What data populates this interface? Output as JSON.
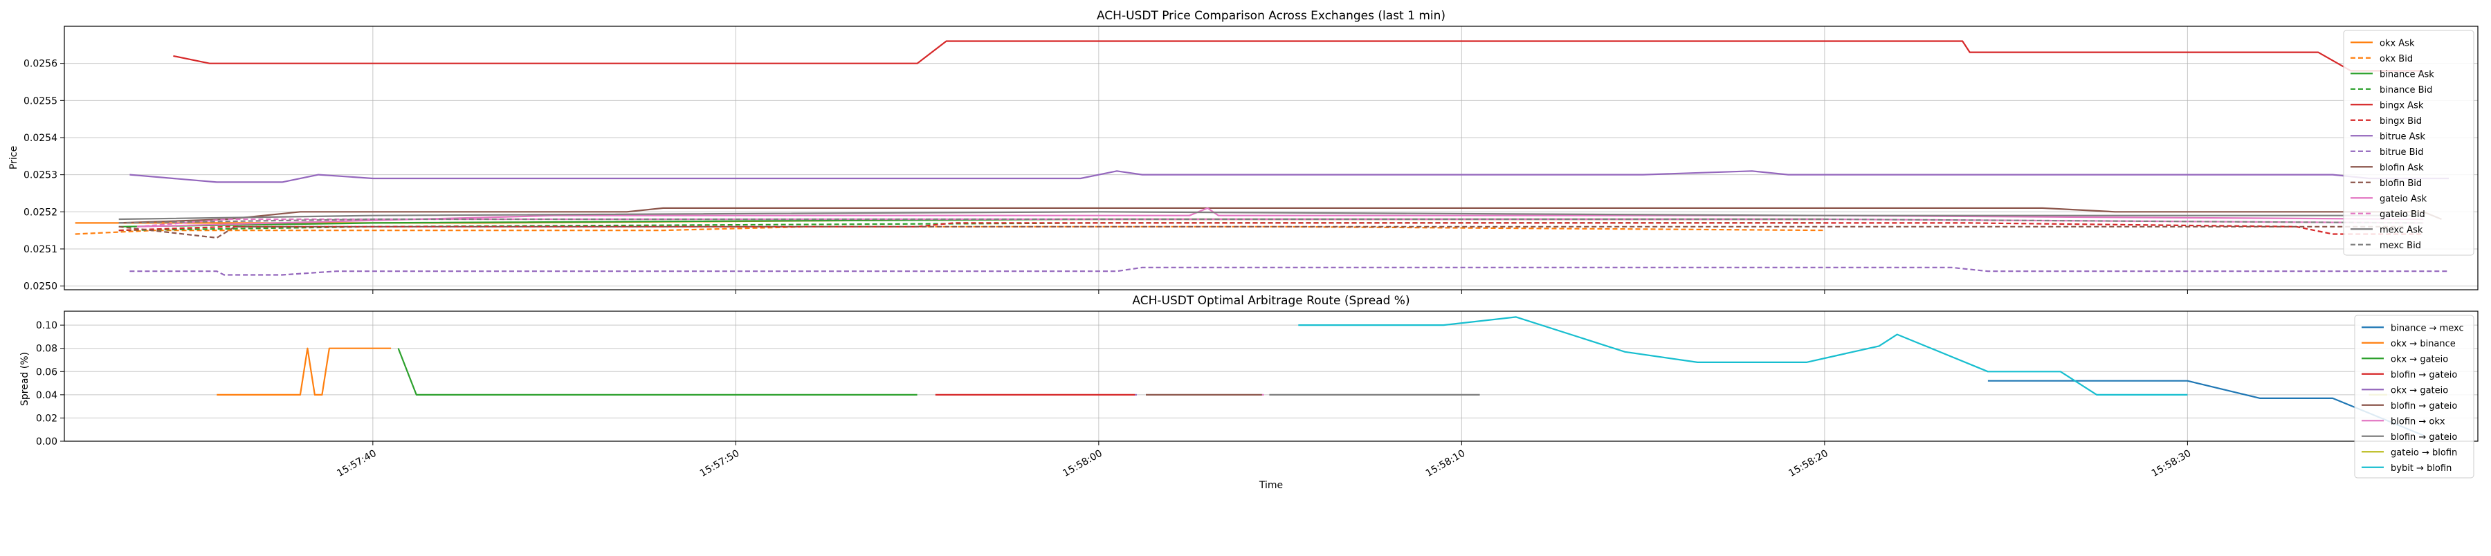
{
  "chart_data": [
    {
      "type": "line",
      "title": "ACH-USDT Price Comparison Across Exchanges (last 1 min)",
      "xlabel": "",
      "ylabel": "Price",
      "ylim": [
        0.02499,
        0.0257
      ],
      "yticks": [
        "0.0250",
        "0.0251",
        "0.0252",
        "0.0253",
        "0.0254",
        "0.0255",
        "0.0256"
      ],
      "ytick_values": [
        0.025,
        0.0251,
        0.0252,
        0.0253,
        0.0254,
        0.0255,
        0.0256
      ],
      "grid": true,
      "legend_position": "top-right",
      "series": [
        {
          "name": "okx Ask",
          "color": "#ff7f0e",
          "dash": false,
          "points": [
            [
              31.8,
              0.02517
            ],
            [
              38.0,
              0.02517
            ],
            [
              43.0,
              0.02517
            ],
            [
              59.0,
              0.02518
            ],
            [
              80.0,
              0.02518
            ]
          ]
        },
        {
          "name": "okx Bid",
          "color": "#ff7f0e",
          "dash": true,
          "points": [
            [
              31.8,
              0.02514
            ],
            [
              34.0,
              0.02515
            ],
            [
              48.0,
              0.02515
            ],
            [
              52.0,
              0.02516
            ],
            [
              65.0,
              0.02516
            ],
            [
              80.0,
              0.02515
            ]
          ]
        },
        {
          "name": "binance Ask",
          "color": "#2ca02c",
          "dash": false,
          "points": [
            [
              33.0,
              0.02516
            ],
            [
              40.0,
              0.02517
            ],
            [
              60.0,
              0.02518
            ],
            [
              78.0,
              0.02518
            ],
            [
              80.0,
              0.02518
            ]
          ]
        },
        {
          "name": "binance Bid",
          "color": "#2ca02c",
          "dash": true,
          "points": [
            [
              33.0,
              0.02515
            ],
            [
              40.0,
              0.02516
            ],
            [
              60.0,
              0.02517
            ],
            [
              80.0,
              0.02517
            ]
          ]
        },
        {
          "name": "bingx Ask",
          "color": "#d62728",
          "dash": false,
          "points": [
            [
              34.5,
              0.02562
            ],
            [
              35.5,
              0.0256
            ],
            [
              36.0,
              0.0256
            ],
            [
              55.0,
              0.0256
            ],
            [
              55.8,
              0.02566
            ],
            [
              83.8,
              0.02566
            ],
            [
              84.0,
              0.02563
            ],
            [
              93.6,
              0.02563
            ],
            [
              94.5,
              0.02558
            ],
            [
              96.5,
              0.02558
            ]
          ]
        },
        {
          "name": "bingx Bid",
          "color": "#d62728",
          "dash": true,
          "points": [
            [
              33.0,
              0.02515
            ],
            [
              36.0,
              0.02516
            ],
            [
              55.0,
              0.02516
            ],
            [
              56.0,
              0.02517
            ],
            [
              84.0,
              0.02517
            ],
            [
              93.0,
              0.02516
            ],
            [
              94.0,
              0.02514
            ],
            [
              96.5,
              0.02514
            ]
          ]
        },
        {
          "name": "bitrue Ask",
          "color": "#9467bd",
          "dash": false,
          "points": [
            [
              33.3,
              0.0253
            ],
            [
              34.5,
              0.02529
            ],
            [
              35.7,
              0.02528
            ],
            [
              37.5,
              0.02528
            ],
            [
              38.5,
              0.0253
            ],
            [
              40.0,
              0.02529
            ],
            [
              59.5,
              0.02529
            ],
            [
              60.5,
              0.02531
            ],
            [
              61.2,
              0.0253
            ],
            [
              75.0,
              0.0253
            ],
            [
              78.0,
              0.02531
            ],
            [
              79.0,
              0.0253
            ],
            [
              94.0,
              0.0253
            ],
            [
              95.0,
              0.02529
            ],
            [
              97.2,
              0.02529
            ]
          ]
        },
        {
          "name": "bitrue Bid",
          "color": "#9467bd",
          "dash": true,
          "points": [
            [
              33.3,
              0.02504
            ],
            [
              35.7,
              0.02504
            ],
            [
              35.9,
              0.02503
            ],
            [
              37.5,
              0.02503
            ],
            [
              39.0,
              0.02504
            ],
            [
              60.5,
              0.02504
            ],
            [
              61.2,
              0.02505
            ],
            [
              83.5,
              0.02505
            ],
            [
              84.5,
              0.02504
            ],
            [
              97.2,
              0.02504
            ]
          ]
        },
        {
          "name": "blofin Ask",
          "color": "#8c564b",
          "dash": false,
          "points": [
            [
              33.0,
              0.02517
            ],
            [
              36.0,
              0.02518
            ],
            [
              38.0,
              0.0252
            ],
            [
              47.0,
              0.0252
            ],
            [
              48.0,
              0.02521
            ],
            [
              86.0,
              0.02521
            ],
            [
              88.0,
              0.0252
            ],
            [
              96.5,
              0.0252
            ],
            [
              97.0,
              0.02518
            ]
          ]
        },
        {
          "name": "blofin Bid",
          "color": "#8c564b",
          "dash": true,
          "points": [
            [
              33.0,
              0.02516
            ],
            [
              35.7,
              0.02513
            ],
            [
              36.2,
              0.02516
            ],
            [
              62.0,
              0.02516
            ],
            [
              80.0,
              0.02516
            ],
            [
              96.0,
              0.02516
            ]
          ]
        },
        {
          "name": "gateio Ask",
          "color": "#e377c2",
          "dash": false,
          "points": [
            [
              33.5,
              0.02516
            ],
            [
              45.0,
              0.02519
            ],
            [
              60.0,
              0.02519
            ],
            [
              62.5,
              0.02519
            ],
            [
              63.0,
              0.02521
            ],
            [
              63.3,
              0.02519
            ],
            [
              80.0,
              0.02519
            ],
            [
              96.5,
              0.02518
            ]
          ]
        },
        {
          "name": "gateio Bid",
          "color": "#e377c2",
          "dash": true,
          "points": [
            [
              33.5,
              0.02516
            ],
            [
              36.0,
              0.02518
            ],
            [
              38.0,
              0.02518
            ],
            [
              60.0,
              0.02518
            ],
            [
              80.0,
              0.02518
            ],
            [
              96.5,
              0.02517
            ]
          ]
        },
        {
          "name": "mexc Ask",
          "color": "#7f7f7f",
          "dash": false,
          "points": [
            [
              33.0,
              0.02518
            ],
            [
              40.0,
              0.02519
            ],
            [
              60.0,
              0.0252
            ],
            [
              80.0,
              0.02519
            ],
            [
              96.5,
              0.02519
            ]
          ]
        },
        {
          "name": "mexc Bid",
          "color": "#7f7f7f",
          "dash": true,
          "points": [
            [
              33.0,
              0.02517
            ],
            [
              40.0,
              0.02518
            ],
            [
              60.0,
              0.02518
            ],
            [
              80.0,
              0.02518
            ],
            [
              96.5,
              0.02517
            ]
          ]
        }
      ]
    },
    {
      "type": "line",
      "title": "ACH-USDT Optimal Arbitrage Route (Spread %)",
      "xlabel": "Time",
      "ylabel": "Spread (%)",
      "ylim": [
        0.0,
        0.112
      ],
      "yticks": [
        "0.00",
        "0.02",
        "0.04",
        "0.06",
        "0.08",
        "0.10"
      ],
      "ytick_values": [
        0.0,
        0.02,
        0.04,
        0.06,
        0.08,
        0.1
      ],
      "grid": true,
      "legend_position": "top-right",
      "series": [
        {
          "name": "binance → mexc",
          "color": "#1f77b4",
          "points": [
            [
              84.5,
              0.052
            ],
            [
              90.0,
              0.052
            ],
            [
              92.0,
              0.037
            ],
            [
              94.0,
              0.037
            ],
            [
              96.5,
              0.005
            ]
          ]
        },
        {
          "name": "okx → binance",
          "color": "#ff7f0e",
          "points": [
            [
              35.7,
              0.04
            ],
            [
              38.0,
              0.04
            ],
            [
              38.2,
              0.08
            ],
            [
              38.4,
              0.04
            ],
            [
              38.6,
              0.04
            ],
            [
              38.8,
              0.08
            ],
            [
              40.5,
              0.08
            ]
          ]
        },
        {
          "name": "okx → gateio",
          "color": "#2ca02c",
          "points": [
            [
              40.7,
              0.08
            ],
            [
              41.2,
              0.04
            ],
            [
              55.0,
              0.04
            ]
          ]
        },
        {
          "name": "blofin → gateio",
          "color": "#d62728",
          "points": [
            [
              55.5,
              0.04
            ],
            [
              61.0,
              0.04
            ]
          ]
        },
        {
          "name": "okx → gateio",
          "color": "#9467bd",
          "points": [
            [
              61.0,
              0.04
            ],
            [
              61.05,
              0.04
            ]
          ]
        },
        {
          "name": "blofin → gateio",
          "color": "#8c564b",
          "points": [
            [
              61.3,
              0.04
            ],
            [
              64.5,
              0.04
            ]
          ]
        },
        {
          "name": "blofin → okx",
          "color": "#e377c2",
          "points": [
            [
              64.5,
              0.04
            ],
            [
              64.55,
              0.04
            ]
          ]
        },
        {
          "name": "blofin → gateio",
          "color": "#7f7f7f",
          "points": [
            [
              64.7,
              0.04
            ],
            [
              70.5,
              0.04
            ]
          ]
        },
        {
          "name": "gateio → blofin",
          "color": "#bcbd22",
          "points": [
            [
              95.0,
              0.04
            ],
            [
              95.5,
              0.04
            ]
          ]
        },
        {
          "name": "bybit → blofin",
          "color": "#17becf",
          "points": [
            [
              65.5,
              0.1
            ],
            [
              69.5,
              0.1
            ],
            [
              71.5,
              0.107
            ],
            [
              74.5,
              0.077
            ],
            [
              76.5,
              0.068
            ],
            [
              79.5,
              0.068
            ],
            [
              81.5,
              0.082
            ],
            [
              82.0,
              0.092
            ],
            [
              84.5,
              0.06
            ],
            [
              86.5,
              0.06
            ],
            [
              87.5,
              0.04
            ],
            [
              90.0,
              0.04
            ]
          ]
        }
      ]
    }
  ],
  "x_axis": {
    "ticks": [
      "15:57:40",
      "15:57:50",
      "15:58:00",
      "15:58:10",
      "15:58:20",
      "15:58:30"
    ],
    "tick_values": [
      40,
      50,
      60,
      70,
      80,
      90
    ],
    "range": [
      31.5,
      98.0
    ]
  }
}
